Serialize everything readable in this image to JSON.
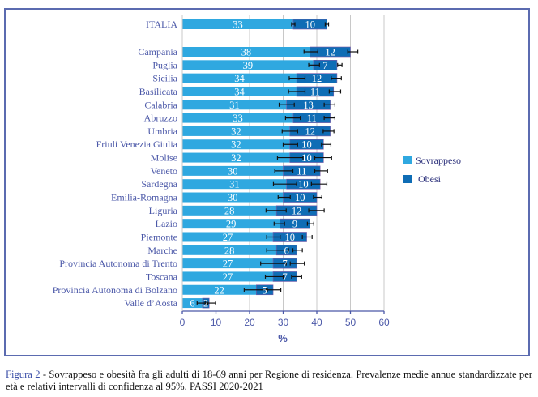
{
  "chart_data": {
    "type": "bar",
    "orientation": "horizontal",
    "stacked": true,
    "xlabel": "%",
    "ylabel": "",
    "xlim": [
      0,
      60
    ],
    "xticks": [
      0,
      10,
      20,
      30,
      40,
      50,
      60
    ],
    "grid": true,
    "legend_position": "right",
    "categories": [
      "ITALIA",
      "Campania",
      "Puglia",
      "Sicilia",
      "Basilicata",
      "Calabria",
      "Abruzzo",
      "Umbria",
      "Friuli Venezia Giulia",
      "Molise",
      "Veneto",
      "Sardegna",
      "Emilia-Romagna",
      "Liguria",
      "Lazio",
      "Piemonte",
      "Marche",
      "Provincia Autonoma di Trento",
      "Toscana",
      "Provincia Autonoma di Bolzano",
      "Valle d’Aosta"
    ],
    "series": [
      {
        "name": "Sovrappeso",
        "color": "#2fa8e0",
        "values": [
          33,
          38,
          39,
          34,
          34,
          31,
          33,
          32,
          32,
          32,
          30,
          31,
          30,
          28,
          29,
          27,
          28,
          27,
          27,
          22,
          6
        ],
        "ci_low": [
          32.5,
          36.2,
          37.6,
          31.8,
          31.6,
          28.8,
          30.7,
          29.7,
          30.0,
          28.3,
          27.5,
          27.1,
          28.5,
          24.9,
          27.3,
          25.1,
          25.1,
          23.3,
          24.7,
          18.4,
          4.4
        ],
        "ci_high": [
          33.5,
          40.3,
          40.8,
          36.5,
          36.5,
          33.3,
          35.1,
          34.3,
          34.3,
          35.9,
          32.9,
          34.0,
          32.1,
          30.9,
          30.4,
          29.1,
          31.6,
          30.9,
          30.0,
          25.3,
          7.6
        ]
      },
      {
        "name": "Obesi",
        "color": "#0f6db5",
        "values": [
          10,
          12,
          7,
          12,
          11,
          13,
          11,
          12,
          10,
          10,
          11,
          10,
          10,
          12,
          9,
          10,
          6,
          7,
          7,
          5,
          2
        ],
        "ci_low": [
          42.5,
          49.2,
          46.2,
          44.3,
          43.7,
          42.2,
          42.2,
          41.9,
          41.4,
          39.4,
          39.4,
          38.4,
          39.0,
          37.6,
          37.2,
          35.7,
          32.9,
          32.1,
          32.5,
          25.0,
          6.8
        ],
        "ci_high": [
          43.5,
          52.2,
          47.5,
          47.3,
          47.1,
          45.4,
          45.4,
          45.1,
          44.2,
          44.4,
          43.2,
          43.0,
          41.5,
          42.2,
          39.1,
          38.6,
          35.7,
          36.3,
          35.5,
          29.3,
          9.9
        ]
      }
    ],
    "ci_note": "error bars show 95% confidence intervals on cumulative prevalence"
  },
  "legend": {
    "items": [
      {
        "label": "Sovrappeso",
        "color": "#2fa8e0"
      },
      {
        "label": "Obesi",
        "color": "#0f6db5"
      }
    ]
  },
  "caption": {
    "figure_label": "Figura 2",
    "text": " - Sovrappeso e obesità fra gli adulti di 18-69 anni per Regione di residenza. Prevalenze medie annue standardizzate per età e relativi intervalli di confidenza al 95%. PASSI 2020-2021"
  }
}
